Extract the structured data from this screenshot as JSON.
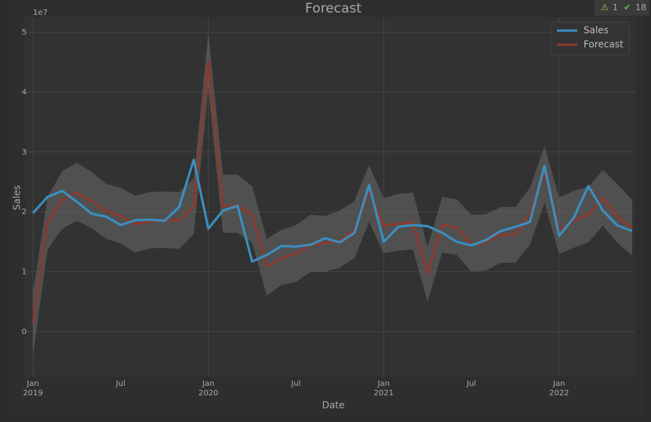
{
  "toolbar": {
    "warnings": "1",
    "checks": "18"
  },
  "chart_data": {
    "type": "line",
    "title": "Forecast",
    "xlabel": "Date",
    "ylabel": "Sales",
    "y_offset_label": "1e7",
    "x": [
      "2019-01",
      "2019-02",
      "2019-03",
      "2019-04",
      "2019-05",
      "2019-06",
      "2019-07",
      "2019-08",
      "2019-09",
      "2019-10",
      "2019-11",
      "2019-12",
      "2020-01",
      "2020-02",
      "2020-03",
      "2020-04",
      "2020-05",
      "2020-06",
      "2020-07",
      "2020-08",
      "2020-09",
      "2020-10",
      "2020-11",
      "2020-12",
      "2021-01",
      "2021-02",
      "2021-03",
      "2021-04",
      "2021-05",
      "2021-06",
      "2021-07",
      "2021-08",
      "2021-09",
      "2021-10",
      "2021-11",
      "2021-12",
      "2022-01",
      "2022-02",
      "2022-03",
      "2022-04",
      "2022-05",
      "2022-06"
    ],
    "series": [
      {
        "name": "Sales",
        "color": "#3a8fc0",
        "values": [
          1.98,
          2.25,
          2.35,
          2.17,
          1.97,
          1.92,
          1.78,
          1.86,
          1.87,
          1.85,
          2.08,
          2.87,
          1.72,
          2.02,
          2.1,
          1.17,
          1.28,
          1.43,
          1.42,
          1.45,
          1.56,
          1.49,
          1.65,
          2.45,
          1.5,
          1.75,
          1.78,
          1.76,
          1.65,
          1.5,
          1.44,
          1.53,
          1.68,
          1.75,
          1.83,
          2.77,
          1.6,
          1.9,
          2.43,
          2.02,
          1.77,
          1.68
        ]
      },
      {
        "name": "Forecast",
        "color": "#8b3a2f",
        "values": [
          0.15,
          1.82,
          2.2,
          2.32,
          2.18,
          2.02,
          1.93,
          1.8,
          1.84,
          1.86,
          1.86,
          2.1,
          4.5,
          2.1,
          2.1,
          1.95,
          1.08,
          1.23,
          1.3,
          1.45,
          1.48,
          1.52,
          1.7,
          2.35,
          1.77,
          1.8,
          1.82,
          0.98,
          1.78,
          1.74,
          1.45,
          1.5,
          1.62,
          1.62,
          1.98,
          2.65,
          1.7,
          1.85,
          1.95,
          2.23,
          1.92,
          1.72
        ]
      }
    ],
    "band": {
      "color": "#6a6a6a",
      "upper": [
        0.65,
        2.25,
        2.68,
        2.82,
        2.67,
        2.47,
        2.4,
        2.27,
        2.33,
        2.34,
        2.33,
        2.56,
        4.98,
        2.62,
        2.62,
        2.43,
        1.55,
        1.7,
        1.78,
        1.95,
        1.93,
        2.02,
        2.18,
        2.78,
        2.23,
        2.3,
        2.32,
        1.42,
        2.25,
        2.21,
        1.95,
        1.96,
        2.08,
        2.08,
        2.4,
        3.1,
        2.24,
        2.35,
        2.42,
        2.7,
        2.46,
        2.2
      ],
      "lower": [
        -0.4,
        1.37,
        1.72,
        1.85,
        1.73,
        1.55,
        1.47,
        1.32,
        1.39,
        1.4,
        1.38,
        1.63,
        4.05,
        1.65,
        1.65,
        1.48,
        0.6,
        0.78,
        0.83,
        1.0,
        1.0,
        1.07,
        1.23,
        1.83,
        1.31,
        1.35,
        1.37,
        0.5,
        1.32,
        1.28,
        1.0,
        1.02,
        1.15,
        1.15,
        1.45,
        2.15,
        1.3,
        1.4,
        1.49,
        1.77,
        1.48,
        1.27
      ]
    },
    "xlim": [
      "2019-01",
      "2022-06"
    ],
    "xticks": [
      {
        "value": "2019-01",
        "label": "Jan",
        "year": "2019"
      },
      {
        "value": "2019-07",
        "label": "Jul"
      },
      {
        "value": "2020-01",
        "label": "Jan",
        "year": "2020"
      },
      {
        "value": "2020-07",
        "label": "Jul"
      },
      {
        "value": "2021-01",
        "label": "Jan",
        "year": "2021"
      },
      {
        "value": "2021-07",
        "label": "Jul"
      },
      {
        "value": "2022-01",
        "label": "Jan",
        "year": "2022"
      }
    ],
    "ylim": [
      -0.75,
      5.25
    ],
    "yticks": [
      0,
      1,
      2,
      3,
      4,
      5
    ],
    "grid": true,
    "legend": "upper right"
  }
}
